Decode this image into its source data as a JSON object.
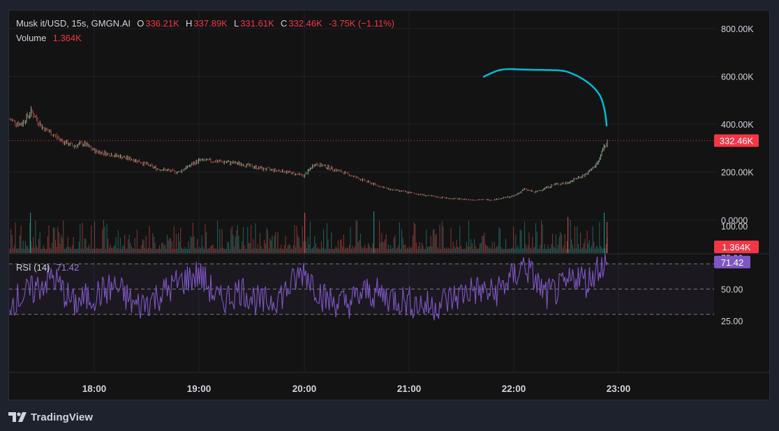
{
  "header": {
    "symbol": "Musk it/USD, 15s, GMGN.AI",
    "open_label": "O",
    "open": "336.21K",
    "high_label": "H",
    "high": "337.89K",
    "low_label": "L",
    "low": "331.61K",
    "close_label": "C",
    "close": "332.46K",
    "change": "-3.75K (−1.11%)",
    "volume_label": "Volume",
    "volume": "1.364K"
  },
  "rsi": {
    "label": "RSI (14)",
    "value": "71.42"
  },
  "colors": {
    "up": "#26a69a",
    "down": "#ef5350",
    "candle_up": "#b9f6ca",
    "rsi_line": "#7e57c2",
    "annotation": "#00bcd4",
    "price_tag": "#f23645",
    "rsi_tag": "#7e57c2"
  },
  "footer": {
    "brand": "TradingView",
    "logo_icon": "tradingview-logo-icon"
  },
  "chart_data": [
    {
      "type": "line",
      "title": "Musk it/USD, 15s, GMGN.AI",
      "x_ticks": [
        "18:00",
        "19:00",
        "20:00",
        "21:00",
        "22:00",
        "23:00"
      ],
      "y_ticks": [
        "800.00K",
        "600.00K",
        "400.00K",
        "200.00K",
        "0.0000"
      ],
      "ylim": [
        0,
        850000
      ],
      "last_price_label": "332.46K",
      "series": [
        {
          "name": "Musk it/USD",
          "x": [
            "17:12",
            "17:18",
            "17:24",
            "17:30",
            "17:36",
            "17:42",
            "17:48",
            "17:54",
            "18:00",
            "18:12",
            "18:24",
            "18:36",
            "18:48",
            "19:00",
            "19:12",
            "19:24",
            "19:36",
            "19:48",
            "20:00",
            "20:06",
            "20:12",
            "20:24",
            "20:36",
            "20:48",
            "21:00",
            "21:12",
            "21:24",
            "21:36",
            "21:48",
            "22:00",
            "22:06",
            "22:12",
            "22:18",
            "22:24",
            "22:30",
            "22:36",
            "22:42",
            "22:48",
            "22:51",
            "22:54"
          ],
          "values": [
            420000,
            400000,
            455000,
            390000,
            360000,
            330000,
            310000,
            320000,
            290000,
            270000,
            250000,
            215000,
            200000,
            250000,
            245000,
            235000,
            215000,
            205000,
            185000,
            235000,
            225000,
            195000,
            160000,
            130000,
            115000,
            100000,
            90000,
            85000,
            85000,
            100000,
            130000,
            115000,
            135000,
            150000,
            155000,
            175000,
            195000,
            240000,
            300000,
            332460
          ]
        }
      ],
      "annotation": {
        "type": "freehand-curve",
        "color": "#00bcd4"
      }
    },
    {
      "type": "bar",
      "title": "Volume",
      "last_value_label": "1.364K",
      "note": "per-candle volume bars, colored up/down"
    },
    {
      "type": "line",
      "title": "RSI (14)",
      "y_ticks": [
        "100.00",
        "75.00",
        "50.00",
        "25.00"
      ],
      "ylim": [
        0,
        100
      ],
      "bands": [
        30,
        50,
        70
      ],
      "last_value_label": "71.42",
      "series": [
        {
          "name": "RSI (14)",
          "x": [
            "17:12",
            "17:24",
            "17:36",
            "17:48",
            "18:00",
            "18:12",
            "18:24",
            "18:36",
            "18:48",
            "19:00",
            "19:12",
            "19:24",
            "19:36",
            "19:48",
            "20:00",
            "20:12",
            "20:24",
            "20:36",
            "20:48",
            "21:00",
            "21:12",
            "21:24",
            "21:36",
            "21:48",
            "22:00",
            "22:06",
            "22:18",
            "22:30",
            "22:36",
            "22:42",
            "22:48",
            "22:54"
          ],
          "values": [
            40,
            48,
            60,
            38,
            45,
            52,
            36,
            44,
            55,
            62,
            40,
            50,
            38,
            46,
            65,
            42,
            38,
            48,
            44,
            40,
            36,
            42,
            50,
            46,
            60,
            70,
            45,
            52,
            62,
            55,
            68,
            71.42
          ]
        }
      ]
    }
  ]
}
